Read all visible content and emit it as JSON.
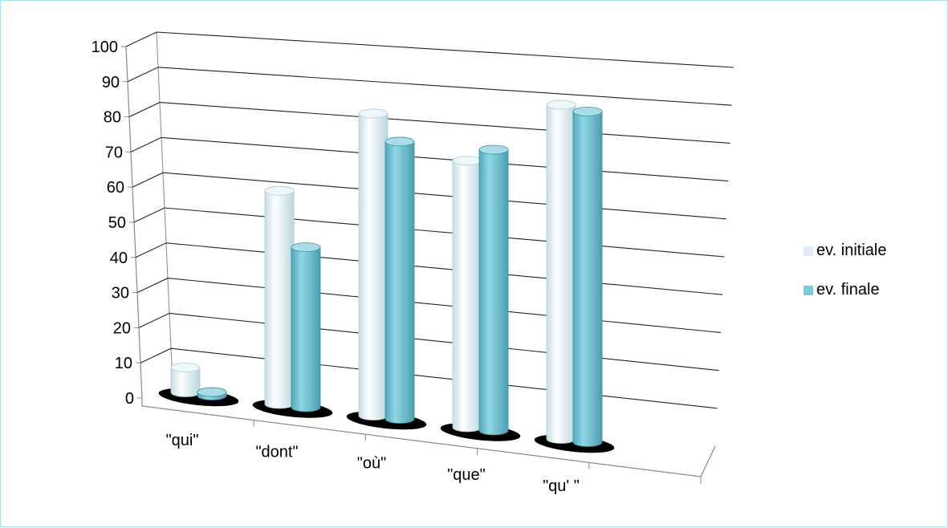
{
  "chart_data": {
    "type": "bar",
    "style": "3d-cylinder",
    "categories": [
      "\"qui\"",
      "\"dont\"",
      "\"où\"",
      "\"que\"",
      "\"qu' \""
    ],
    "series": [
      {
        "name": "ev. initiale",
        "color": "#dbeef3",
        "values": [
          7,
          60,
          85,
          75,
          94
        ]
      },
      {
        "name": "ev. finale",
        "color": "#7fcad9",
        "values": [
          1,
          45,
          78,
          79,
          93
        ]
      }
    ],
    "y_ticks": [
      "0",
      "10",
      "20",
      "30",
      "40",
      "50",
      "60",
      "70",
      "80",
      "90",
      "100"
    ],
    "ylim": [
      0,
      100
    ],
    "grid": true,
    "legend_position": "right"
  },
  "colors": {
    "border": "#a9e0e8",
    "gridline": "#222222",
    "floor_shadow": "#000000"
  }
}
